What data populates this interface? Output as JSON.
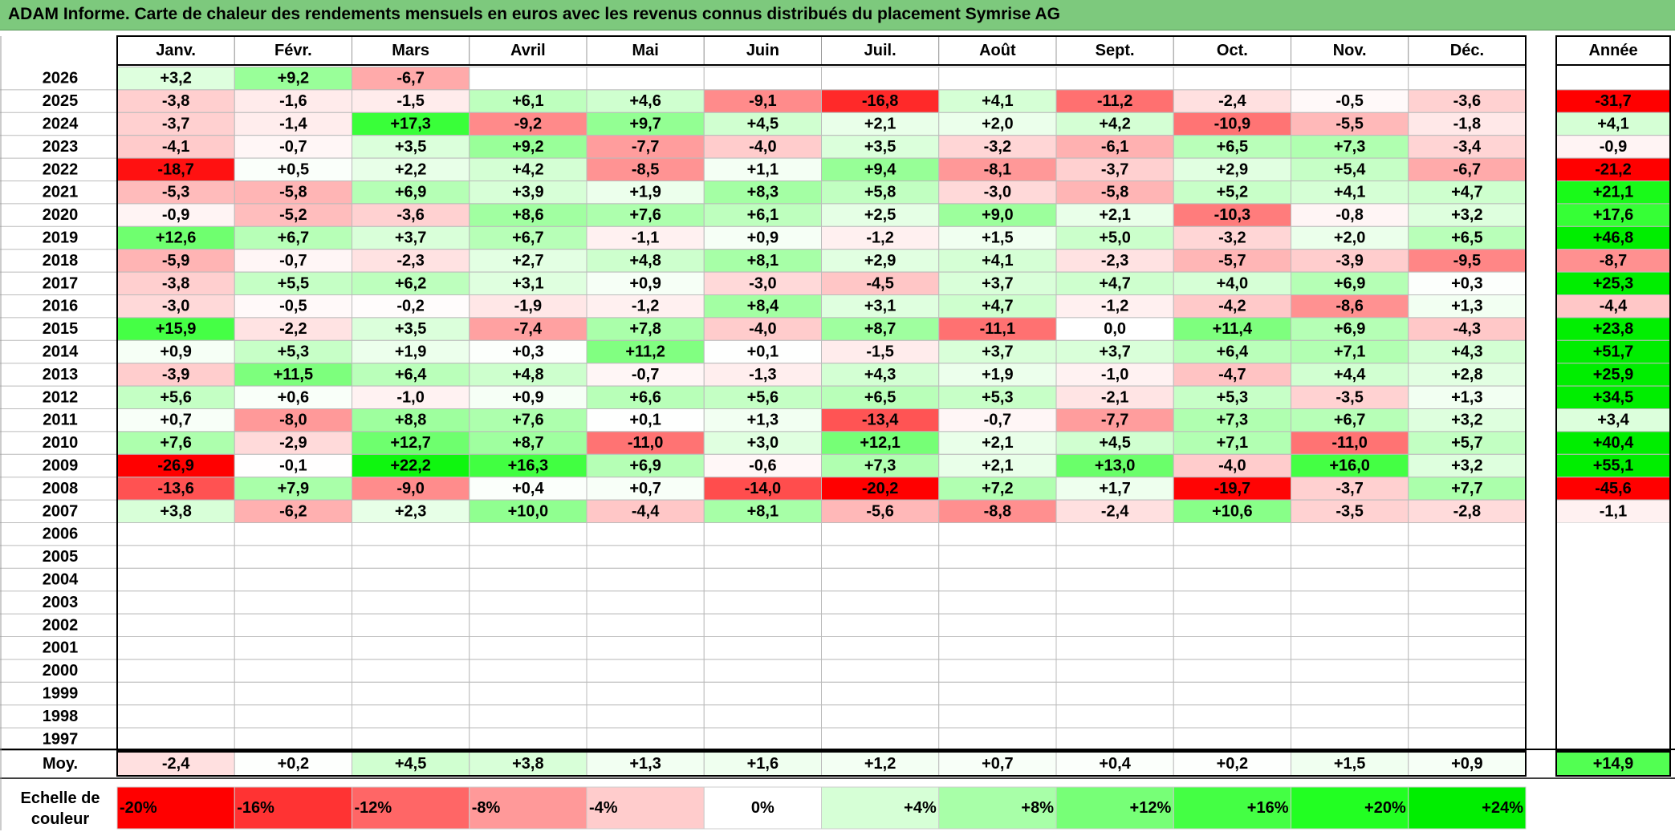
{
  "title": "ADAM Informe. Carte de chaleur des rendements mensuels en euros avec les revenus connus distribués du placement Symrise AG",
  "chart_data": {
    "type": "heatmap",
    "months": [
      "Janv.",
      "Févr.",
      "Mars",
      "Avril",
      "Mai",
      "Juin",
      "Juil.",
      "Août",
      "Sept.",
      "Oct.",
      "Nov.",
      "Déc."
    ],
    "year_header": "Année",
    "years": [
      "2026",
      "2025",
      "2024",
      "2023",
      "2022",
      "2021",
      "2020",
      "2019",
      "2018",
      "2017",
      "2016",
      "2015",
      "2014",
      "2013",
      "2012",
      "2011",
      "2010",
      "2009",
      "2008",
      "2007",
      "2006",
      "2005",
      "2004",
      "2003",
      "2002",
      "2001",
      "2000",
      "1999",
      "1998",
      "1997"
    ],
    "values": [
      [
        3.2,
        9.2,
        -6.7,
        null,
        null,
        null,
        null,
        null,
        null,
        null,
        null,
        null
      ],
      [
        -3.8,
        -1.6,
        -1.5,
        6.1,
        4.6,
        -9.1,
        -16.8,
        4.1,
        -11.2,
        -2.4,
        -0.5,
        -3.6
      ],
      [
        -3.7,
        -1.4,
        17.3,
        -9.2,
        9.7,
        4.5,
        2.1,
        2.0,
        4.2,
        -10.9,
        -5.5,
        -1.8
      ],
      [
        -4.1,
        -0.7,
        3.5,
        9.2,
        -7.7,
        -4.0,
        3.5,
        -3.2,
        -6.1,
        6.5,
        7.3,
        -3.4
      ],
      [
        -18.7,
        0.5,
        2.2,
        4.2,
        -8.5,
        1.1,
        9.4,
        -8.1,
        -3.7,
        2.9,
        5.4,
        -6.7
      ],
      [
        -5.3,
        -5.8,
        6.9,
        3.9,
        1.9,
        8.3,
        5.8,
        -3.0,
        -5.8,
        5.2,
        4.1,
        4.7
      ],
      [
        -0.9,
        -5.2,
        -3.6,
        8.6,
        7.6,
        6.1,
        2.5,
        9.0,
        2.1,
        -10.3,
        -0.8,
        3.2
      ],
      [
        12.6,
        6.7,
        3.7,
        6.7,
        -1.1,
        0.9,
        -1.2,
        1.5,
        5.0,
        -3.2,
        2.0,
        6.5
      ],
      [
        -5.9,
        -0.7,
        -2.3,
        2.7,
        4.8,
        8.1,
        2.9,
        4.1,
        -2.3,
        -5.7,
        -3.9,
        -9.5
      ],
      [
        -3.8,
        5.5,
        6.2,
        3.1,
        0.9,
        -3.0,
        -4.5,
        3.7,
        4.7,
        4.0,
        6.9,
        0.3
      ],
      [
        -3.0,
        -0.5,
        -0.2,
        -1.9,
        -1.2,
        8.4,
        3.1,
        4.7,
        -1.2,
        -4.2,
        -8.6,
        1.3
      ],
      [
        15.9,
        -2.2,
        3.5,
        -7.4,
        7.8,
        -4.0,
        8.7,
        -11.1,
        0.0,
        11.4,
        6.9,
        -4.3
      ],
      [
        0.9,
        5.3,
        1.9,
        0.3,
        11.2,
        0.1,
        -1.5,
        3.7,
        3.7,
        6.4,
        7.1,
        4.3
      ],
      [
        -3.9,
        11.5,
        6.4,
        4.8,
        -0.7,
        -1.3,
        4.3,
        1.9,
        -1.0,
        -4.7,
        4.4,
        2.8
      ],
      [
        5.6,
        0.6,
        -1.0,
        0.9,
        6.6,
        5.6,
        6.5,
        5.3,
        -2.1,
        5.3,
        -3.5,
        1.3
      ],
      [
        0.7,
        -8.0,
        8.8,
        7.6,
        0.1,
        1.3,
        -13.4,
        -0.7,
        -7.7,
        7.3,
        6.7,
        3.2
      ],
      [
        7.6,
        -2.9,
        12.7,
        8.7,
        -11.0,
        3.0,
        12.1,
        2.1,
        4.5,
        7.1,
        -11.0,
        5.7
      ],
      [
        -26.9,
        -0.1,
        22.2,
        16.3,
        6.9,
        -0.6,
        7.3,
        2.1,
        13.0,
        -4.0,
        16.0,
        3.2
      ],
      [
        -13.6,
        7.9,
        -9.0,
        0.4,
        0.7,
        -14.0,
        -20.2,
        7.2,
        1.7,
        -19.7,
        -3.7,
        7.7
      ],
      [
        3.8,
        -6.2,
        2.3,
        10.0,
        -4.4,
        8.1,
        -5.6,
        -8.8,
        -2.4,
        10.6,
        -3.5,
        -2.8
      ],
      [
        null,
        null,
        null,
        null,
        null,
        null,
        null,
        null,
        null,
        null,
        null,
        null
      ],
      [
        null,
        null,
        null,
        null,
        null,
        null,
        null,
        null,
        null,
        null,
        null,
        null
      ],
      [
        null,
        null,
        null,
        null,
        null,
        null,
        null,
        null,
        null,
        null,
        null,
        null
      ],
      [
        null,
        null,
        null,
        null,
        null,
        null,
        null,
        null,
        null,
        null,
        null,
        null
      ],
      [
        null,
        null,
        null,
        null,
        null,
        null,
        null,
        null,
        null,
        null,
        null,
        null
      ],
      [
        null,
        null,
        null,
        null,
        null,
        null,
        null,
        null,
        null,
        null,
        null,
        null
      ],
      [
        null,
        null,
        null,
        null,
        null,
        null,
        null,
        null,
        null,
        null,
        null,
        null
      ],
      [
        null,
        null,
        null,
        null,
        null,
        null,
        null,
        null,
        null,
        null,
        null,
        null
      ],
      [
        null,
        null,
        null,
        null,
        null,
        null,
        null,
        null,
        null,
        null,
        null,
        null
      ],
      [
        null,
        null,
        null,
        null,
        null,
        null,
        null,
        null,
        null,
        null,
        null,
        null
      ]
    ],
    "annual": [
      null,
      -31.7,
      4.1,
      -0.9,
      -21.2,
      21.1,
      17.6,
      46.8,
      -8.7,
      25.3,
      -4.4,
      23.8,
      51.7,
      25.9,
      34.5,
      3.4,
      40.4,
      55.1,
      -45.6,
      -1.1,
      null,
      null,
      null,
      null,
      null,
      null,
      null,
      null,
      null,
      null
    ],
    "average_label": "Moy.",
    "averages": [
      -2.4,
      0.2,
      4.5,
      3.8,
      1.3,
      1.6,
      1.2,
      0.7,
      0.4,
      0.2,
      1.5,
      0.9
    ],
    "average_annual": 14.9,
    "scale_label_line1": "Echelle de",
    "scale_label_line2": "couleur",
    "scale": [
      {
        "label": "-20%",
        "value": -20,
        "color": "#ff0000",
        "align": "left"
      },
      {
        "label": "-16%",
        "value": -16,
        "color": "#ff3333",
        "align": "left"
      },
      {
        "label": "-12%",
        "value": -12,
        "color": "#ff6666",
        "align": "left"
      },
      {
        "label": "-8%",
        "value": -8,
        "color": "#ff9999",
        "align": "left"
      },
      {
        "label": "-4%",
        "value": -4,
        "color": "#ffcccc",
        "align": "left"
      },
      {
        "label": "0%",
        "value": 0,
        "color": "#ffffff",
        "align": "center"
      },
      {
        "label": "+4%",
        "value": 4,
        "color": "#d6ffd6",
        "align": "right"
      },
      {
        "label": "+8%",
        "value": 8,
        "color": "#a8ffa8",
        "align": "right"
      },
      {
        "label": "+12%",
        "value": 12,
        "color": "#77ff77",
        "align": "right"
      },
      {
        "label": "+16%",
        "value": 16,
        "color": "#44ff44",
        "align": "right"
      },
      {
        "label": "+20%",
        "value": 20,
        "color": "#22ff22",
        "align": "right"
      },
      {
        "label": "+24%",
        "value": 24,
        "color": "#00ee00",
        "align": "right"
      }
    ]
  }
}
